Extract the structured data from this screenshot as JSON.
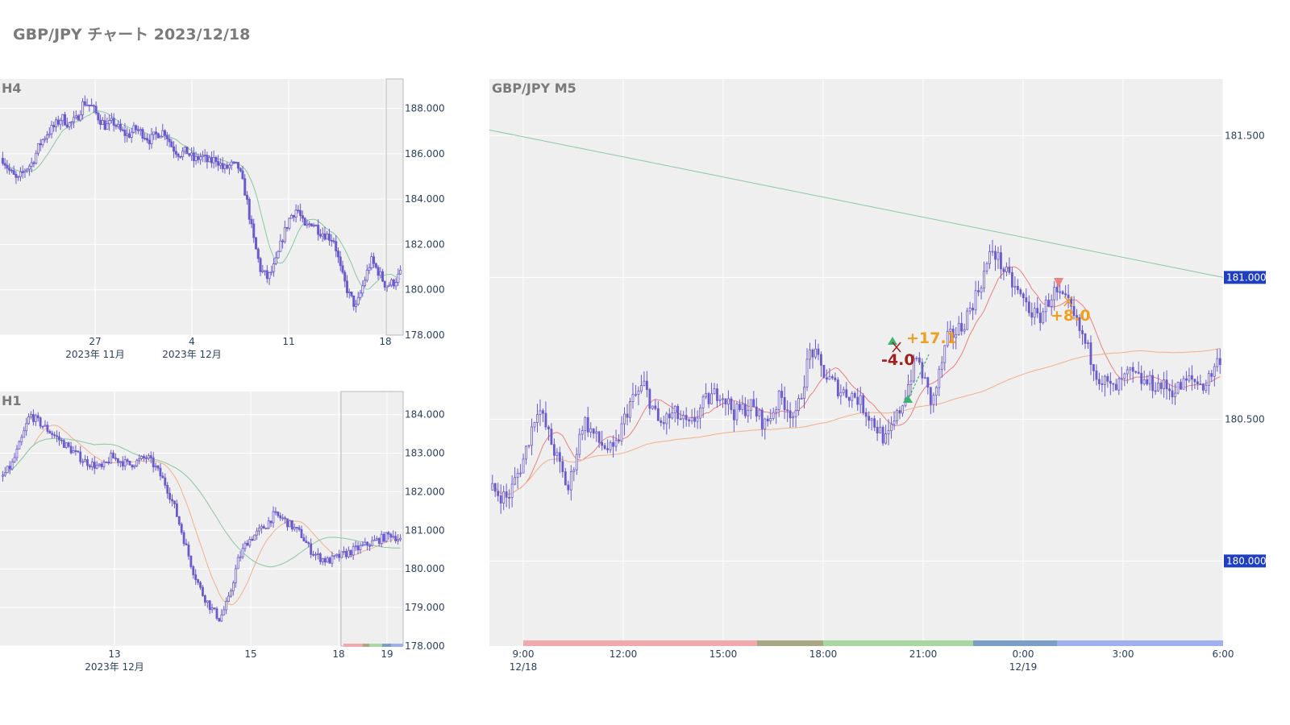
{
  "page": {
    "title": "GBP/JPY チャート 2023/12/18"
  },
  "colors": {
    "plot_bg": "#efefef",
    "grid": "#ffffff",
    "candle": "#6a5acd",
    "ma_short": "#e88080",
    "ma_mid": "#f0b088",
    "ma_long": "#88c8a0",
    "badge": "#1f3fbf",
    "buy_marker": "#3cb371",
    "sell_marker": "#f08080",
    "profit": "#f0a020",
    "loss": "#a02020",
    "session_colors": [
      "#f2a9ae",
      "#a8a884",
      "#a8d8a0",
      "#7aa0c8",
      "#a0b0ee"
    ]
  },
  "chart_data": [
    {
      "id": "h4",
      "type": "candlestick",
      "title": "H4",
      "ylim": [
        178,
        189.3
      ],
      "yticks": [
        "188.000",
        "186.000",
        "184.000",
        "182.000",
        "180.000",
        "178.000"
      ],
      "ytick_values": [
        188,
        186,
        184,
        182,
        180,
        178
      ],
      "xticks": [
        {
          "label": "27",
          "sub": "2023年 11月"
        },
        {
          "label": "4",
          "sub": "2023年 12月"
        },
        {
          "label": "11",
          "sub": ""
        },
        {
          "label": "18",
          "sub": ""
        }
      ],
      "close_path": [
        185.8,
        185.2,
        184.8,
        185.3,
        185.6,
        186.4,
        186.9,
        187.2,
        187.6,
        187.3,
        187.5,
        188.3,
        188.1,
        187.6,
        187.2,
        187.4,
        187.0,
        186.8,
        187.1,
        186.9,
        186.6,
        186.9,
        187.0,
        186.3,
        186.0,
        186.1,
        185.7,
        185.9,
        185.6,
        185.8,
        185.3,
        185.5,
        185.4,
        184.2,
        182.3,
        180.9,
        180.5,
        181.1,
        182.3,
        183.2,
        183.6,
        182.7,
        183.0,
        182.6,
        182.4,
        182.2,
        180.7,
        179.8,
        179.2,
        180.3,
        181.3,
        180.8,
        180.2,
        180.3,
        180.7
      ]
    },
    {
      "id": "h1",
      "type": "candlestick",
      "title": "H1",
      "ylim": [
        178,
        184.6
      ],
      "yticks": [
        "184.000",
        "183.000",
        "182.000",
        "181.000",
        "180.000",
        "179.000",
        "178.000"
      ],
      "ytick_values": [
        184,
        183,
        182,
        181,
        180,
        179,
        178
      ],
      "xticks": [
        {
          "label": "13",
          "sub": "2023年 12月"
        },
        {
          "label": "15",
          "sub": ""
        },
        {
          "label": "18",
          "sub": ""
        },
        {
          "label": "19",
          "sub": ""
        }
      ],
      "close_path": [
        182.4,
        182.7,
        183.3,
        184.0,
        183.8,
        183.6,
        183.4,
        183.2,
        183.0,
        182.8,
        182.7,
        182.6,
        182.9,
        182.8,
        182.7,
        182.8,
        182.9,
        182.6,
        182.2,
        181.6,
        180.8,
        180.0,
        179.4,
        179.0,
        178.7,
        179.2,
        180.2,
        180.7,
        180.9,
        181.1,
        181.4,
        181.3,
        181.1,
        180.9,
        180.5,
        180.3,
        180.2,
        180.3,
        180.4,
        180.5,
        180.6,
        180.7,
        180.8,
        180.9,
        180.75
      ]
    },
    {
      "id": "m5",
      "type": "candlestick",
      "title": "GBP/JPY M5",
      "ylim": [
        179.7,
        181.7
      ],
      "yticks": [
        "181.500",
        "180.500"
      ],
      "ytick_values": [
        181.5,
        180.5
      ],
      "price_badges": [
        {
          "label": "181.000",
          "value": 181.0
        },
        {
          "label": "180.000",
          "value": 180.0
        }
      ],
      "xticks": [
        {
          "label": "9:00",
          "sub": "12/18"
        },
        {
          "label": "12:00",
          "sub": ""
        },
        {
          "label": "15:00",
          "sub": ""
        },
        {
          "label": "18:00",
          "sub": ""
        },
        {
          "label": "21:00",
          "sub": ""
        },
        {
          "label": "0:00",
          "sub": "12/19"
        },
        {
          "label": "3:00",
          "sub": ""
        },
        {
          "label": "6:00",
          "sub": ""
        }
      ],
      "close_path": [
        180.25,
        180.22,
        180.35,
        180.55,
        180.4,
        180.25,
        180.5,
        180.42,
        180.38,
        180.55,
        180.62,
        180.48,
        180.52,
        180.47,
        180.56,
        180.6,
        180.52,
        180.55,
        180.48,
        180.58,
        180.5,
        180.75,
        180.65,
        180.6,
        180.58,
        180.5,
        180.42,
        180.55,
        180.72,
        180.55,
        180.78,
        180.83,
        180.95,
        181.1,
        181.0,
        180.92,
        180.85,
        180.95,
        180.9,
        180.78,
        180.65,
        180.6,
        180.66,
        180.63,
        180.62,
        180.6,
        180.64,
        180.62,
        180.72
      ],
      "trades": [
        {
          "entry": "+17.1",
          "kind": "profit"
        },
        {
          "entry": "-4.0",
          "kind": "loss"
        },
        {
          "entry": "+8.0",
          "kind": "profit"
        }
      ]
    }
  ]
}
